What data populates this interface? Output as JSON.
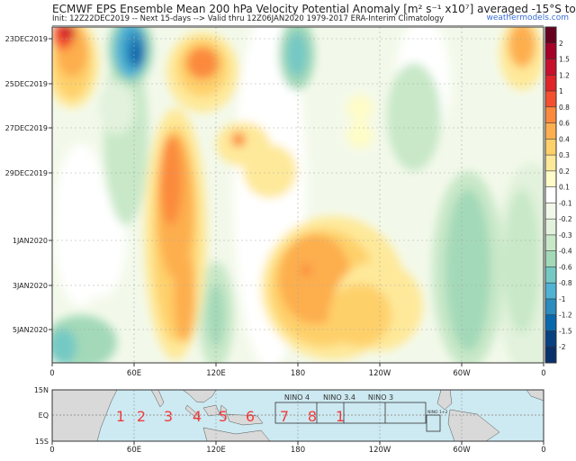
{
  "header": {
    "title": "ECMWF EPS Ensemble Mean 200 hPa Velocity Potential Anomaly [m² s⁻¹ x10⁷] averaged -15°S to 15°N",
    "subtitle": "Init: 12Z22DEC2019 -- Next 15-days --> Valid thru 12Z06JAN2020 1979-2017 ERA-Interim Climatology",
    "watermark": "weathermodels.com"
  },
  "chart_data": {
    "type": "heatmap",
    "title": "ECMWF EPS Ensemble Mean 200 hPa Velocity Potential Anomaly [m² s⁻¹ x10⁷] averaged -15°S to 15°N",
    "x_ticks": [
      "0",
      "60E",
      "120E",
      "180",
      "120W",
      "60W",
      "0"
    ],
    "y_ticks": [
      "23DEC2019",
      "25DEC2019",
      "27DEC2019",
      "29DEC2019",
      "1JAN2020",
      "3JAN2020",
      "5JAN2020"
    ],
    "colorbar": {
      "levels": [
        "2",
        "1.5",
        "1.2",
        "1",
        "0.8",
        "0.6",
        "0.4",
        "0.3",
        "0.2",
        "0.1",
        "-0.1",
        "-0.2",
        "-0.3",
        "-0.4",
        "-0.6",
        "-0.8",
        "-1",
        "-1.2",
        "-1.5",
        "-2"
      ],
      "colors": [
        "#67001f",
        "#a50026",
        "#c8102e",
        "#e0242a",
        "#f4502f",
        "#fb8a3d",
        "#fdae4e",
        "#fed06a",
        "#fee99a",
        "#fefcc8",
        "#ffffff",
        "#f3f9ea",
        "#e2f2dc",
        "#c8e8c8",
        "#a3d9b8",
        "#74c9c4",
        "#4fb3d3",
        "#2b8cbe",
        "#0868ac",
        "#084081"
      ]
    },
    "grid": true
  },
  "map": {
    "y_ticks": [
      "15N",
      "EQ",
      "15S"
    ],
    "x_ticks": [
      "0",
      "60E",
      "120E",
      "180",
      "120W",
      "60W",
      "0"
    ],
    "regions": [
      "NINO 4",
      "NINO 3.4",
      "NINO 3",
      "NINO 1+2"
    ],
    "mjo_phases": [
      "1",
      "2",
      "3",
      "4",
      "5",
      "6",
      "7",
      "8",
      "1"
    ],
    "ocean_color": "#cde9f1",
    "land_color": "#d9d9d9",
    "phase_color": "#f03c3c"
  }
}
